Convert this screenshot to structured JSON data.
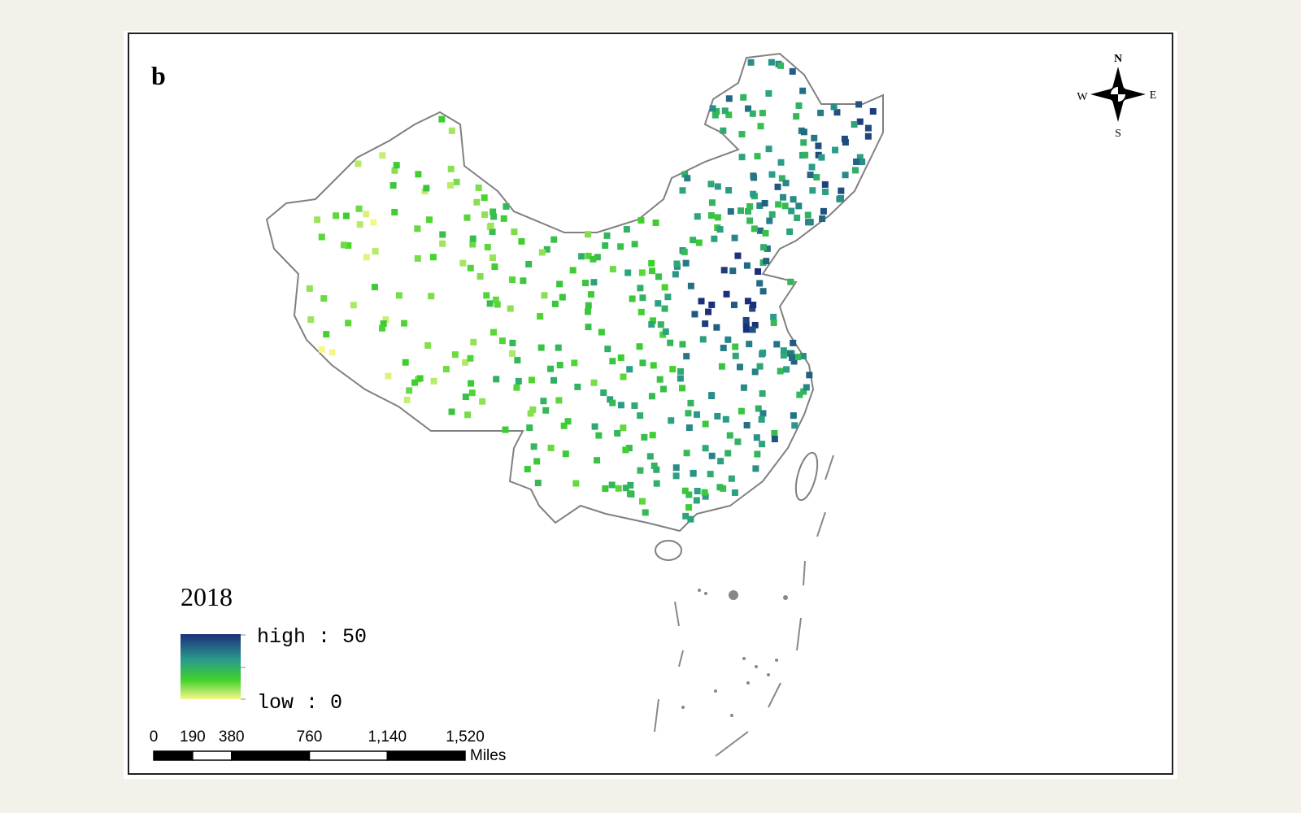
{
  "panel_label": "b",
  "compass": {
    "north": "N",
    "south": "S",
    "east": "E",
    "west": "W"
  },
  "legend": {
    "title": "2018",
    "high_label": "high : 50",
    "low_label": "low : 0"
  },
  "scale_bar": {
    "ticks": [
      0,
      190,
      380,
      760,
      {
        "value": 1140,
        "label": "1,140"
      },
      {
        "value": 1520,
        "label": "1,520"
      }
    ],
    "unit": "Miles"
  }
}
